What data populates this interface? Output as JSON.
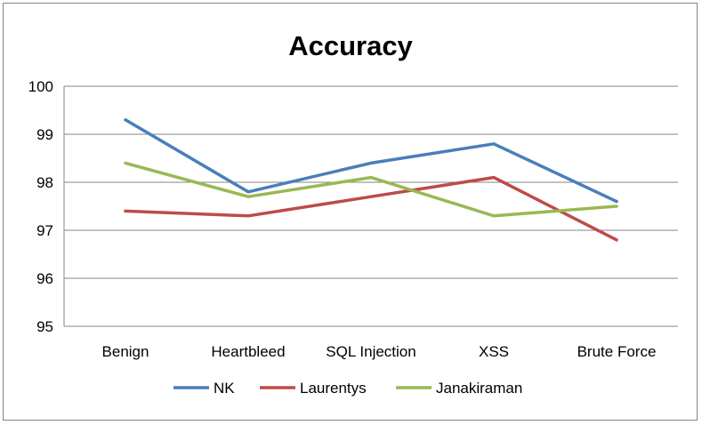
{
  "chart_data": {
    "type": "line",
    "title": "Accuracy",
    "xlabel": "",
    "ylabel": "",
    "categories": [
      "Benign",
      "Heartbleed",
      "SQL Injection",
      "XSS",
      "Brute Force"
    ],
    "ylim": [
      95,
      100
    ],
    "yticks": [
      "95",
      "96",
      "97",
      "98",
      "99",
      "100"
    ],
    "grid": true,
    "legend": "bottom",
    "series": [
      {
        "name": "NK",
        "color": "#4a7ebb",
        "values": [
          99.3,
          97.8,
          98.4,
          98.8,
          97.6
        ]
      },
      {
        "name": "Laurentys",
        "color": "#be4b48",
        "values": [
          97.4,
          97.3,
          97.7,
          98.1,
          96.8
        ]
      },
      {
        "name": "Janakiraman",
        "color": "#98b954",
        "values": [
          98.4,
          97.7,
          98.1,
          97.3,
          97.5
        ]
      }
    ]
  }
}
